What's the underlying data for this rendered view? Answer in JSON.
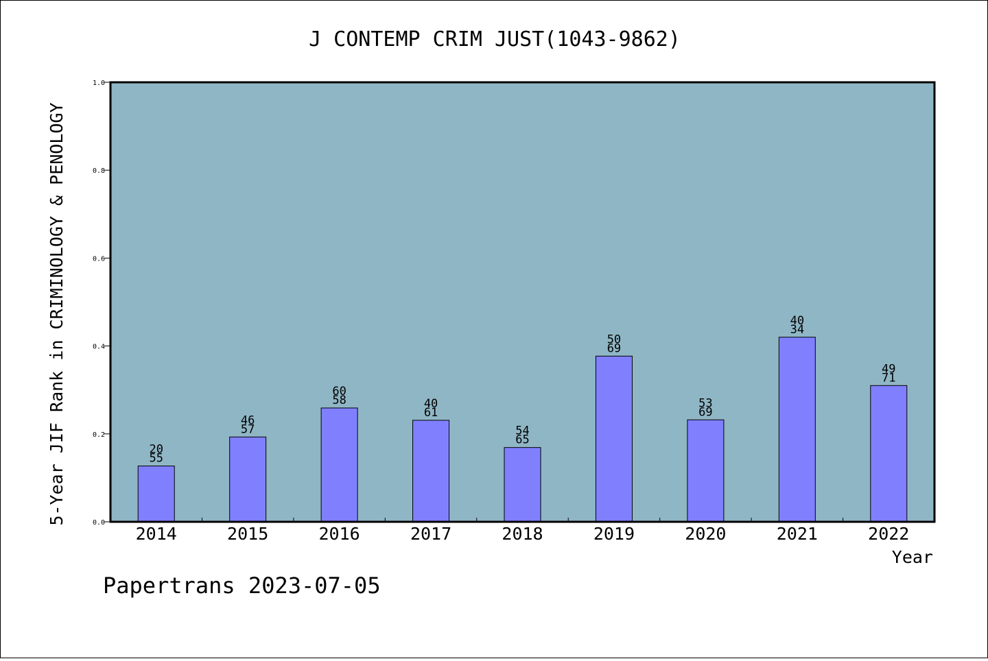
{
  "chart_data": {
    "type": "bar",
    "title": "J CONTEMP CRIM JUST(1043-9862)",
    "xlabel": "Year",
    "ylabel": "5-Year JIF Rank in CRIMINOLOGY & PENOLOGY",
    "ylim": [
      0,
      1.0
    ],
    "yticks": [
      "0.0",
      "0.2",
      "0.4",
      "0.6",
      "0.8",
      "1.0"
    ],
    "grid": false,
    "categories": [
      "2014",
      "2015",
      "2016",
      "2017",
      "2018",
      "2019",
      "2020",
      "2021",
      "2022"
    ],
    "values": [
      0.127,
      0.193,
      0.259,
      0.231,
      0.169,
      0.377,
      0.232,
      0.42,
      0.31
    ],
    "labels_top": [
      "20",
      "46",
      "60",
      "40",
      "54",
      "50",
      "53",
      "40",
      "49"
    ],
    "labels_bottom": [
      "55",
      "57",
      "58",
      "61",
      "65",
      "69",
      "69",
      "34",
      "71"
    ],
    "colors": {
      "plot_background": "#8fb6c5",
      "bar_fill": "#8080ff",
      "bar_stroke": "#000000"
    }
  },
  "footer": {
    "source": "Papertrans 2023-07-05"
  }
}
